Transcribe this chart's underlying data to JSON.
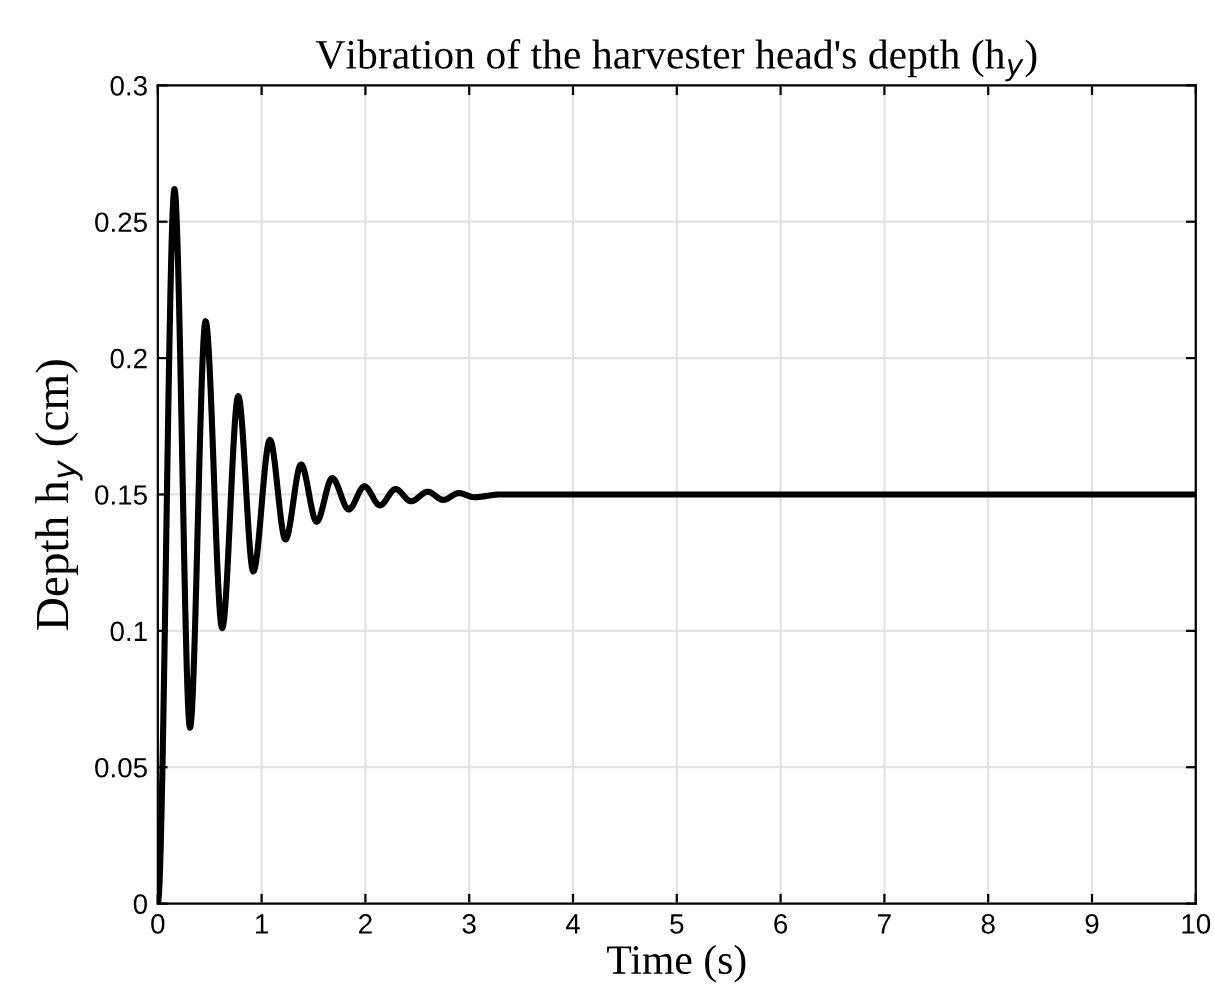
{
  "chart_data": {
    "type": "line",
    "title": "Vibration of the harvester head's depth (h$_{y}$)",
    "xlabel": "Time (s)",
    "ylabel": "Depth h$_{y}$ (cm)",
    "x": [
      0,
      0.16,
      0.31,
      0.46,
      0.62,
      0.775,
      0.92,
      1.08,
      1.23,
      1.38,
      1.53,
      1.68,
      1.84,
      1.99,
      2.14,
      2.29,
      2.44,
      2.6,
      2.75,
      2.9,
      3.05,
      3.3,
      10
    ],
    "series": [
      {
        "color": "#000000",
        "values": [
          0,
          0.262,
          0.0645,
          0.2135,
          0.101,
          0.186,
          0.1218,
          0.17,
          0.1335,
          0.161,
          0.14,
          0.156,
          0.1445,
          0.153,
          0.146,
          0.152,
          0.1475,
          0.151,
          0.148,
          0.1505,
          0.149,
          0.15,
          0.15
        ]
      }
    ],
    "xlim": [
      0,
      10
    ],
    "ylim": [
      0,
      0.3
    ],
    "xticks": [
      0,
      1,
      2,
      3,
      4,
      5,
      6,
      7,
      8,
      9,
      10
    ],
    "yticks": [
      0,
      0.05,
      0.1,
      0.15,
      0.2,
      0.25,
      0.3
    ],
    "grid": true,
    "marker": "none",
    "line_style": "solid"
  }
}
